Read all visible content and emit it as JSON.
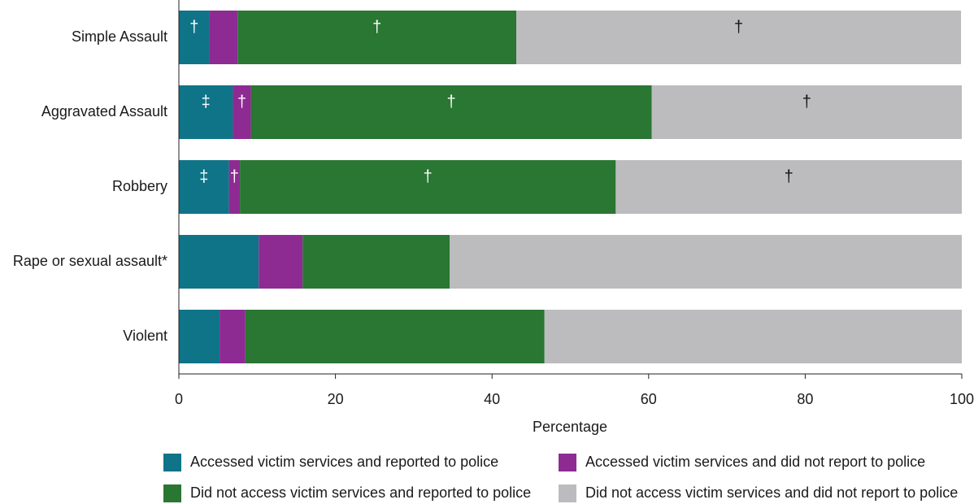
{
  "chart_data": {
    "type": "stacked-barh",
    "xlabel": "Percentage",
    "categories": [
      "Simple Assault",
      "Aggravated Assault",
      "Robbery",
      "Rape or sexual assault*",
      "Violent"
    ],
    "series": [
      {
        "name": "Accessed victim services and reported to police",
        "color": "#0f7488",
        "values": [
          3.9,
          6.9,
          6.4,
          10.2,
          5.2
        ],
        "markers": [
          "†",
          "‡",
          "‡",
          null,
          null
        ],
        "marker_color": "#ffffff"
      },
      {
        "name": "Accessed victim services and did not report to police",
        "color": "#8d2b93",
        "values": [
          3.6,
          2.3,
          1.4,
          5.6,
          3.3
        ],
        "markers": [
          null,
          "†",
          "†",
          null,
          null
        ],
        "marker_color": "#ffffff"
      },
      {
        "name": "Did not access victim services and reported to police",
        "color": "#2a7633",
        "values": [
          35.6,
          51.2,
          48.0,
          18.8,
          38.2
        ],
        "markers": [
          "†",
          "†",
          "†",
          null,
          null
        ],
        "marker_color": "#ffffff"
      },
      {
        "name": "Did not access victim services and did not report to police",
        "color": "#bcbcbe",
        "values": [
          56.8,
          39.6,
          44.2,
          65.4,
          53.3
        ],
        "markers": [
          "†",
          "†",
          "†",
          null,
          null
        ],
        "marker_color": "#111111"
      }
    ],
    "xlim": [
      0,
      100
    ],
    "xticks": [
      0,
      20,
      40,
      60,
      80,
      100
    ],
    "grid": false
  }
}
